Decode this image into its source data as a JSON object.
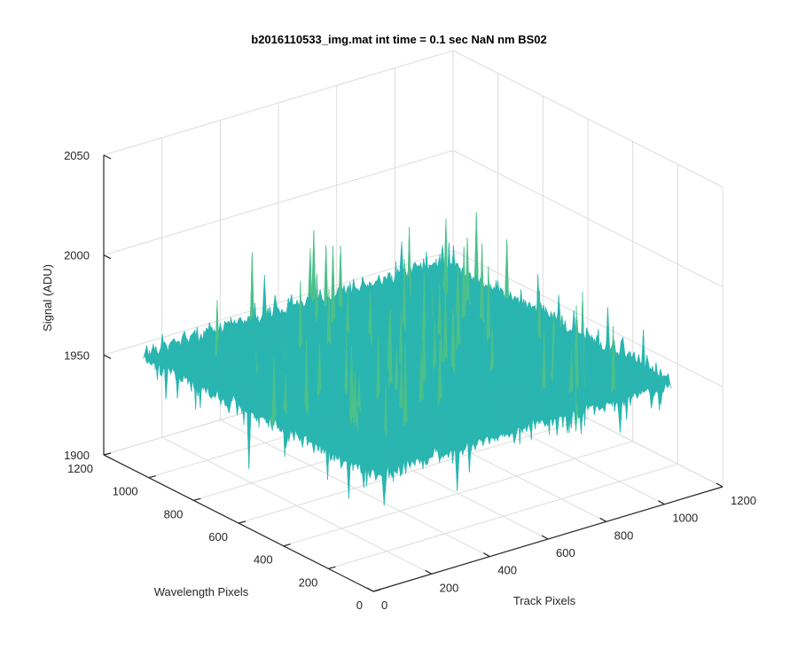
{
  "chart_data": {
    "type": "surface",
    "title": "b2016110533_img.mat int time = 0.1 sec  NaN nm BS02",
    "xlabel": "Track Pixels",
    "ylabel": "Wavelength Pixels",
    "zlabel": "Signal (ADU)",
    "xlim": [
      0,
      1200
    ],
    "ylim": [
      0,
      1200
    ],
    "zlim": [
      1900,
      2050
    ],
    "x_ticks": [
      "0",
      "200",
      "400",
      "600",
      "800",
      "1000",
      "1200"
    ],
    "y_ticks": [
      "0",
      "200",
      "400",
      "600",
      "800",
      "1000",
      "1200"
    ],
    "z_ticks": [
      "1900",
      "1950",
      "2000",
      "2050"
    ],
    "data_extent": {
      "x": [
        0,
        1024
      ],
      "y": [
        0,
        1024
      ]
    },
    "mean_signal": 1960,
    "min_signal": 1915,
    "max_signal": 2035,
    "colormap": [
      "#0072bd",
      "#1aa3c9",
      "#2ab5b0",
      "#4cc08a",
      "#8fc559",
      "#c9c43a",
      "#e8d52a"
    ],
    "grid": true
  }
}
